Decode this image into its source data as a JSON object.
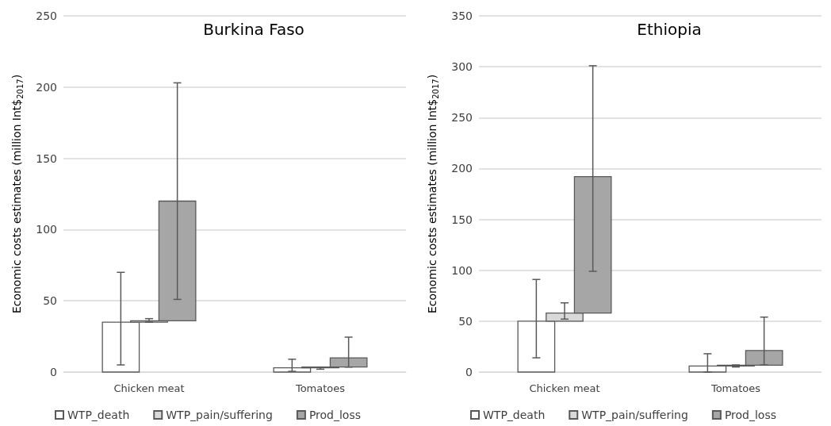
{
  "chart_data": [
    {
      "type": "bar",
      "title": "Burkina Faso",
      "ylabel": "Economic costs estimates (million Int$$_{2017}$)",
      "categories": [
        "Chicken meat",
        "Tomatoes"
      ],
      "series": [
        {
          "name": "WTP_death",
          "color": "#ffffff",
          "values": [
            35,
            3
          ],
          "base": [
            0,
            0
          ],
          "errors": [
            [
              5,
              70
            ],
            [
              0.5,
              9
            ]
          ]
        },
        {
          "name": "WTP_pain/suffering",
          "color": "#d9d9d9",
          "values": [
            1,
            0.5
          ],
          "base": [
            35,
            3
          ],
          "errors": [
            [
              35,
              37.5
            ],
            [
              2,
              3.5
            ]
          ]
        },
        {
          "name": "Prod_loss",
          "color": "#a6a6a6",
          "values": [
            84,
            6.5
          ],
          "base": [
            36,
            3.5
          ],
          "errors": [
            [
              51,
              203
            ],
            [
              3.5,
              24.5
            ]
          ]
        }
      ],
      "ylim": [
        0,
        250
      ],
      "yticks": [
        0,
        50,
        100,
        150,
        200,
        250
      ],
      "grid": "y",
      "legend": "bottom"
    },
    {
      "type": "bar",
      "title": "Ethiopia",
      "ylabel": "Economic costs estimates (million Int$$_{2017}$)",
      "categories": [
        "Chicken meat",
        "Tomatoes"
      ],
      "series": [
        {
          "name": "WTP_death",
          "color": "#ffffff",
          "values": [
            50,
            6
          ],
          "base": [
            0,
            0
          ],
          "errors": [
            [
              14,
              91
            ],
            [
              0,
              18
            ]
          ]
        },
        {
          "name": "WTP_pain/suffering",
          "color": "#d9d9d9",
          "values": [
            8,
            0.7
          ],
          "base": [
            50,
            6
          ],
          "errors": [
            [
              52,
              68
            ],
            [
              5,
              7
            ]
          ]
        },
        {
          "name": "Prod_loss",
          "color": "#a6a6a6",
          "values": [
            134,
            14.5
          ],
          "base": [
            58,
            6.7
          ],
          "errors": [
            [
              99,
              301
            ],
            [
              7,
              54
            ]
          ]
        }
      ],
      "ylim": [
        0,
        350
      ],
      "yticks": [
        0,
        50,
        100,
        150,
        200,
        250,
        300,
        350
      ],
      "grid": "y",
      "legend": "bottom"
    }
  ]
}
